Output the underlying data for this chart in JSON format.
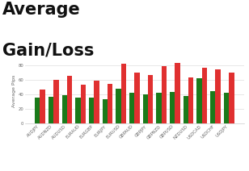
{
  "title_line1": "Average",
  "title_line2": "Gain/Loss",
  "categories": [
    "AUDJPY",
    "AUDNZD",
    "AUDUSD",
    "EURAUD",
    "EURGBP",
    "EURJPY",
    "EURUSD",
    "GBPAUD",
    "GBPJPY",
    "GBPNZD",
    "GBPUSD",
    "NZDUSD",
    "USDCAD",
    "USDCHF",
    "USDJPY"
  ],
  "avg_gain": [
    35,
    37,
    39,
    35,
    35,
    33,
    48,
    42,
    40,
    42,
    43,
    38,
    62,
    44,
    42
  ],
  "avg_loss": [
    46,
    60,
    65,
    53,
    59,
    54,
    82,
    70,
    67,
    79,
    83,
    63,
    77,
    75,
    70
  ],
  "gain_color": "#1a7a1a",
  "loss_color": "#e03030",
  "ylabel": "Average Pips",
  "ylim": [
    0,
    90
  ],
  "yticks": [
    0,
    20,
    40,
    60,
    80
  ],
  "bg_color": "#ffffff",
  "grid_color": "#dddddd",
  "title_fontsize": 15,
  "axis_fontsize": 4.5,
  "tick_fontsize": 3.8,
  "legend_fontsize": 4.5
}
